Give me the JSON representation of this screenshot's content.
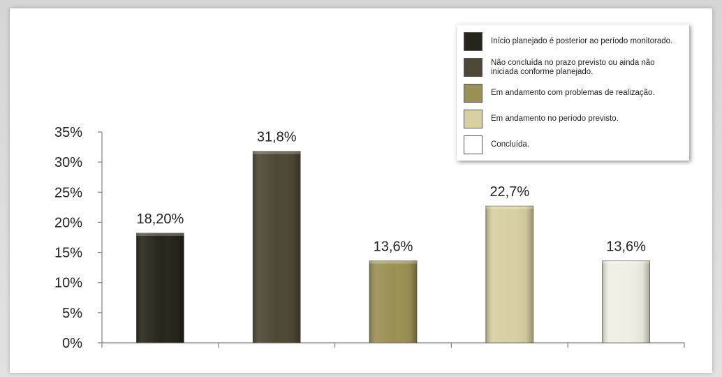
{
  "chart_data": {
    "type": "bar",
    "categories": [
      "Início planejado é posterior ao período monitorado.",
      "Não concluída no prazo previsto ou ainda não iniciada conforme planejado.",
      "Em andamento com problemas de realização.",
      "Em andamento no período previsto.",
      "Concluída."
    ],
    "values": [
      18.2,
      31.8,
      13.6,
      22.7,
      13.6
    ],
    "data_labels": [
      "18,20%",
      "31,8%",
      "13,6%",
      "22,7%",
      "13,6%"
    ],
    "colors": [
      "#27251b",
      "#4d4835",
      "#9b9155",
      "#d8cfa3",
      "#f1efe4"
    ],
    "y_ticks": [
      {
        "value": 0,
        "label": "0%"
      },
      {
        "value": 5,
        "label": "5%"
      },
      {
        "value": 10,
        "label": "10%"
      },
      {
        "value": 15,
        "label": "15%"
      },
      {
        "value": 20,
        "label": "20%"
      },
      {
        "value": 25,
        "label": "25%"
      },
      {
        "value": 30,
        "label": "30%"
      },
      {
        "value": 35,
        "label": "35%"
      }
    ],
    "ylim": [
      0,
      35
    ],
    "grid": false,
    "legend_position": "top-right",
    "title": "",
    "xlabel": "",
    "ylabel": ""
  },
  "legend": {
    "items": [
      {
        "label": "Início planejado é posterior ao período monitorado.",
        "color": "#27251b"
      },
      {
        "label": "Não concluída no prazo previsto ou ainda não iniciada conforme planejado.",
        "color": "#4d4835"
      },
      {
        "label": "Em andamento com problemas de realização.",
        "color": "#9b9155"
      },
      {
        "label": "Em andamento no período previsto.",
        "color": "#d8cfa3"
      },
      {
        "label": "Concluída.",
        "color": "#ffffff"
      }
    ]
  }
}
